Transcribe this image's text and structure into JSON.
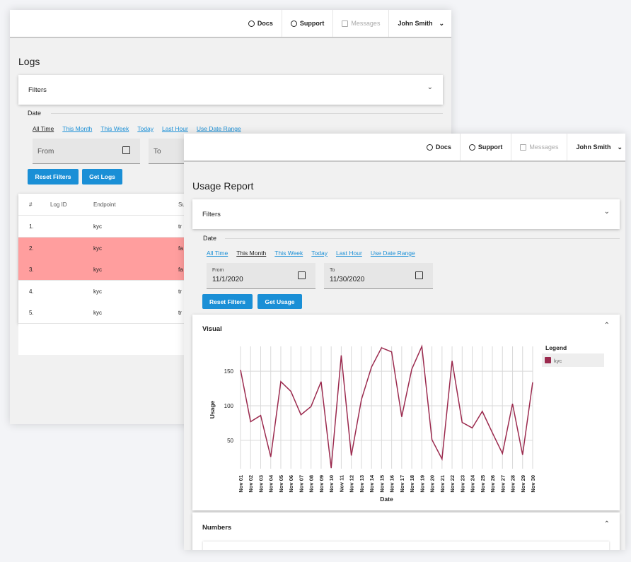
{
  "logs_window": {
    "nav": {
      "docs": "Docs",
      "support": "Support",
      "messages": "Messages",
      "user": "John Smith"
    },
    "title": "Logs",
    "filters": "Filters",
    "date_label": "Date",
    "ranges": [
      "All Time",
      "This Month",
      "This Week",
      "Today",
      "Last Hour",
      "Use Date Range"
    ],
    "active_range": 0,
    "from_placeholder": "From",
    "to_placeholder": "To",
    "buttons": [
      "Reset Filters",
      "Get Logs"
    ],
    "table": {
      "columns": [
        "#",
        "Log ID",
        "Endpoint",
        "Su"
      ],
      "rows": [
        {
          "n": "1.",
          "endpoint": "kyc",
          "status": "tr",
          "failed": false
        },
        {
          "n": "2.",
          "endpoint": "kyc",
          "status": "fa",
          "failed": true
        },
        {
          "n": "3.",
          "endpoint": "kyc",
          "status": "fa",
          "failed": true
        },
        {
          "n": "4.",
          "endpoint": "kyc",
          "status": "tr",
          "failed": false
        },
        {
          "n": "5.",
          "endpoint": "kyc",
          "status": "tr",
          "failed": false
        }
      ]
    }
  },
  "usage_window": {
    "nav": {
      "docs": "Docs",
      "support": "Support",
      "messages": "Messages",
      "user": "John Smith"
    },
    "title": "Usage Report",
    "filters": "Filters",
    "date_label": "Date",
    "ranges": [
      "All Time",
      "This Month",
      "This Week",
      "Today",
      "Last Hour",
      "Use Date Range"
    ],
    "active_range": 1,
    "from_label": "From",
    "from_value": "11/1/2020",
    "to_label": "To",
    "to_value": "11/30/2020",
    "buttons": [
      "Reset Filters",
      "Get Usage"
    ],
    "visual_title": "Visual",
    "numbers_title": "Numbers",
    "chart": {
      "type": "line",
      "x_label": "Date",
      "y_label": "Usage",
      "legend_title": "Legend",
      "categories": [
        "Nov 01",
        "Nov 02",
        "Nov 03",
        "Nov 04",
        "Nov 05",
        "Nov 06",
        "Nov 07",
        "Nov 08",
        "Nov 09",
        "Nov 10",
        "Nov 11",
        "Nov 12",
        "Nov 13",
        "Nov 14",
        "Nov 15",
        "Nov 16",
        "Nov 17",
        "Nov 18",
        "Nov 19",
        "Nov 20",
        "Nov 21",
        "Nov 22",
        "Nov 23",
        "Nov 24",
        "Nov 25",
        "Nov 26",
        "Nov 27",
        "Nov 28",
        "Nov 29",
        "Nov 30"
      ],
      "series": [
        {
          "name": "kyc",
          "color": "#9b2a4e",
          "values": [
            152,
            77,
            86,
            26,
            135,
            121,
            87,
            99,
            135,
            10,
            173,
            28,
            109,
            156,
            184,
            178,
            84,
            153,
            186,
            51,
            23,
            165,
            76,
            68,
            92,
            61,
            31,
            103,
            29,
            134
          ]
        }
      ],
      "ylim": [
        9,
        186
      ],
      "yticks": [
        50,
        100,
        150
      ],
      "grid": true
    }
  }
}
